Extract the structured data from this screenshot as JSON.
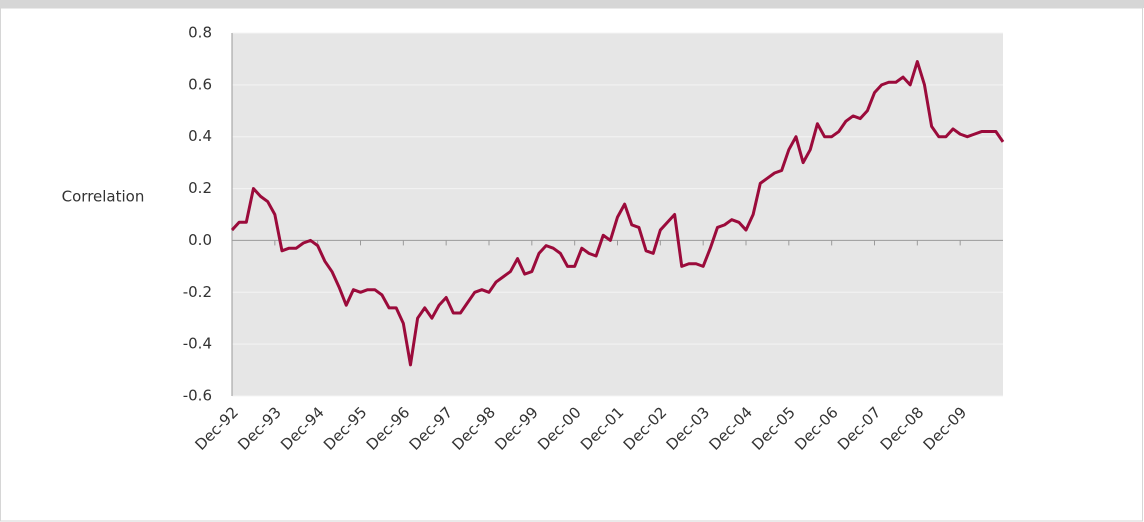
{
  "chart_data": {
    "type": "line",
    "y_label": "Correlation",
    "categories": [
      "Dec-92",
      null,
      null,
      null,
      null,
      null,
      "Dec-93",
      null,
      null,
      null,
      null,
      null,
      "Dec-94",
      null,
      null,
      null,
      null,
      null,
      "Dec-95",
      null,
      null,
      null,
      null,
      null,
      "Dec-96",
      null,
      null,
      null,
      null,
      null,
      "Dec-97",
      null,
      null,
      null,
      null,
      null,
      "Dec-98",
      null,
      null,
      null,
      null,
      null,
      "Dec-99",
      null,
      null,
      null,
      null,
      null,
      "Dec-00",
      null,
      null,
      null,
      null,
      null,
      "Dec-01",
      null,
      null,
      null,
      null,
      null,
      "Dec-02",
      null,
      null,
      null,
      null,
      null,
      "Dec-03",
      null,
      null,
      null,
      null,
      null,
      "Dec-04",
      null,
      null,
      null,
      null,
      null,
      "Dec-05",
      null,
      null,
      null,
      null,
      null,
      "Dec-06",
      null,
      null,
      null,
      null,
      null,
      "Dec-07",
      null,
      null,
      null,
      null,
      null,
      "Dec-08",
      null,
      null,
      null,
      null,
      null,
      "Dec-09",
      null,
      null,
      null,
      null,
      null,
      null
    ],
    "series": [
      {
        "color": "#9b0b3b",
        "values": [
          0.04,
          0.07,
          0.07,
          0.2,
          0.17,
          0.15,
          0.1,
          -0.04,
          -0.03,
          -0.03,
          -0.01,
          0.0,
          -0.02,
          -0.08,
          -0.12,
          -0.18,
          -0.25,
          -0.19,
          -0.2,
          -0.19,
          -0.19,
          -0.21,
          -0.26,
          -0.26,
          -0.32,
          -0.48,
          -0.3,
          -0.26,
          -0.3,
          -0.25,
          -0.22,
          -0.28,
          -0.28,
          -0.24,
          -0.2,
          -0.19,
          -0.2,
          -0.16,
          -0.14,
          -0.12,
          -0.07,
          -0.13,
          -0.12,
          -0.05,
          -0.02,
          -0.03,
          -0.05,
          -0.1,
          -0.1,
          -0.03,
          -0.05,
          -0.06,
          0.02,
          0.0,
          0.09,
          0.14,
          0.06,
          0.05,
          -0.04,
          -0.05,
          0.04,
          0.07,
          0.1,
          -0.1,
          -0.09,
          -0.09,
          -0.1,
          -0.03,
          0.05,
          0.06,
          0.08,
          0.07,
          0.04,
          0.1,
          0.22,
          0.24,
          0.26,
          0.27,
          0.35,
          0.4,
          0.3,
          0.35,
          0.45,
          0.4,
          0.4,
          0.42,
          0.46,
          0.48,
          0.47,
          0.5,
          0.57,
          0.6,
          0.61,
          0.61,
          0.63,
          0.6,
          0.69,
          0.6,
          0.44,
          0.4,
          0.4,
          0.43,
          0.41,
          0.4,
          0.41,
          0.42,
          0.42,
          0.42,
          0.38
        ]
      }
    ],
    "ylim": [
      -0.6,
      0.8
    ],
    "yticks": [
      -0.6,
      -0.4,
      -0.2,
      {
        "value": 0,
        "label": "0.0"
      },
      0.2,
      0.4,
      0.6,
      0.8
    ],
    "grid": true
  }
}
